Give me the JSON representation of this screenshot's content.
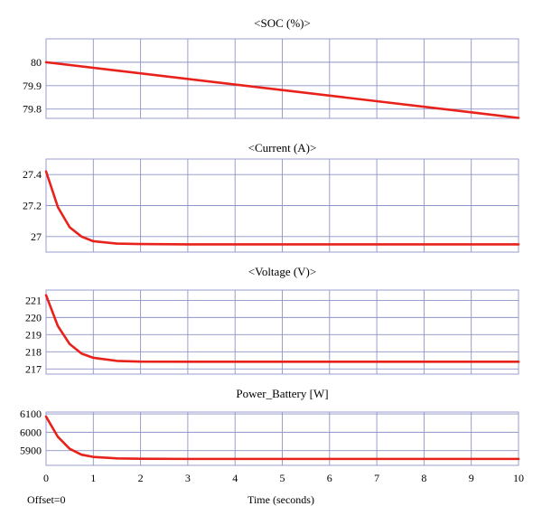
{
  "chart_data": {
    "type": "line",
    "x_ticks": [
      "0",
      "1",
      "2",
      "3",
      "4",
      "5",
      "6",
      "7",
      "8",
      "9",
      "10"
    ],
    "xlabel": "Time (seconds)",
    "offset_label": "Offset=0",
    "xlim": [
      0,
      10
    ],
    "line_color": "#e8221b",
    "grid": true,
    "panels": [
      {
        "title": "<SOC (%)>",
        "ylim": [
          79.76,
          80.1
        ],
        "y_ticks": [
          "80",
          "79.9",
          "79.8"
        ],
        "series": [
          {
            "x": [
              0,
              10
            ],
            "y": [
              80.0,
              79.762
            ]
          }
        ]
      },
      {
        "title": "<Current (A)>",
        "ylim": [
          26.9,
          27.5
        ],
        "y_ticks": [
          "27.4",
          "27.2",
          "27"
        ],
        "series": [
          {
            "x": [
              0,
              0.25,
              0.5,
              0.75,
              1,
              1.5,
              2,
              3,
              4,
              5,
              6,
              7,
              8,
              9,
              10
            ],
            "y": [
              27.42,
              27.19,
              27.06,
              27.0,
              26.97,
              26.955,
              26.952,
              26.95,
              26.95,
              26.95,
              26.95,
              26.95,
              26.95,
              26.95,
              26.95
            ]
          }
        ]
      },
      {
        "title": "<Voltage (V)>",
        "ylim": [
          216.7,
          221.6
        ],
        "y_ticks": [
          "221",
          "220",
          "219",
          "218",
          "217"
        ],
        "series": [
          {
            "x": [
              0,
              0.25,
              0.5,
              0.75,
              1,
              1.5,
              2,
              3,
              4,
              5,
              6,
              7,
              8,
              9,
              10
            ],
            "y": [
              221.3,
              219.5,
              218.45,
              217.9,
              217.65,
              217.47,
              217.43,
              217.42,
              217.42,
              217.42,
              217.42,
              217.42,
              217.42,
              217.42,
              217.42
            ]
          }
        ]
      },
      {
        "title": "Power_Battery [W]",
        "ylim": [
          5820,
          6110
        ],
        "y_ticks": [
          "6100",
          "6000",
          "5900"
        ],
        "series": [
          {
            "x": [
              0,
              0.25,
              0.5,
              0.75,
              1,
              1.5,
              2,
              3,
              4,
              5,
              6,
              7,
              8,
              9,
              10
            ],
            "y": [
              6085,
              5975,
              5910,
              5878,
              5866,
              5858,
              5856,
              5855,
              5855,
              5855,
              5855,
              5855,
              5855,
              5855,
              5855
            ]
          }
        ]
      }
    ]
  }
}
